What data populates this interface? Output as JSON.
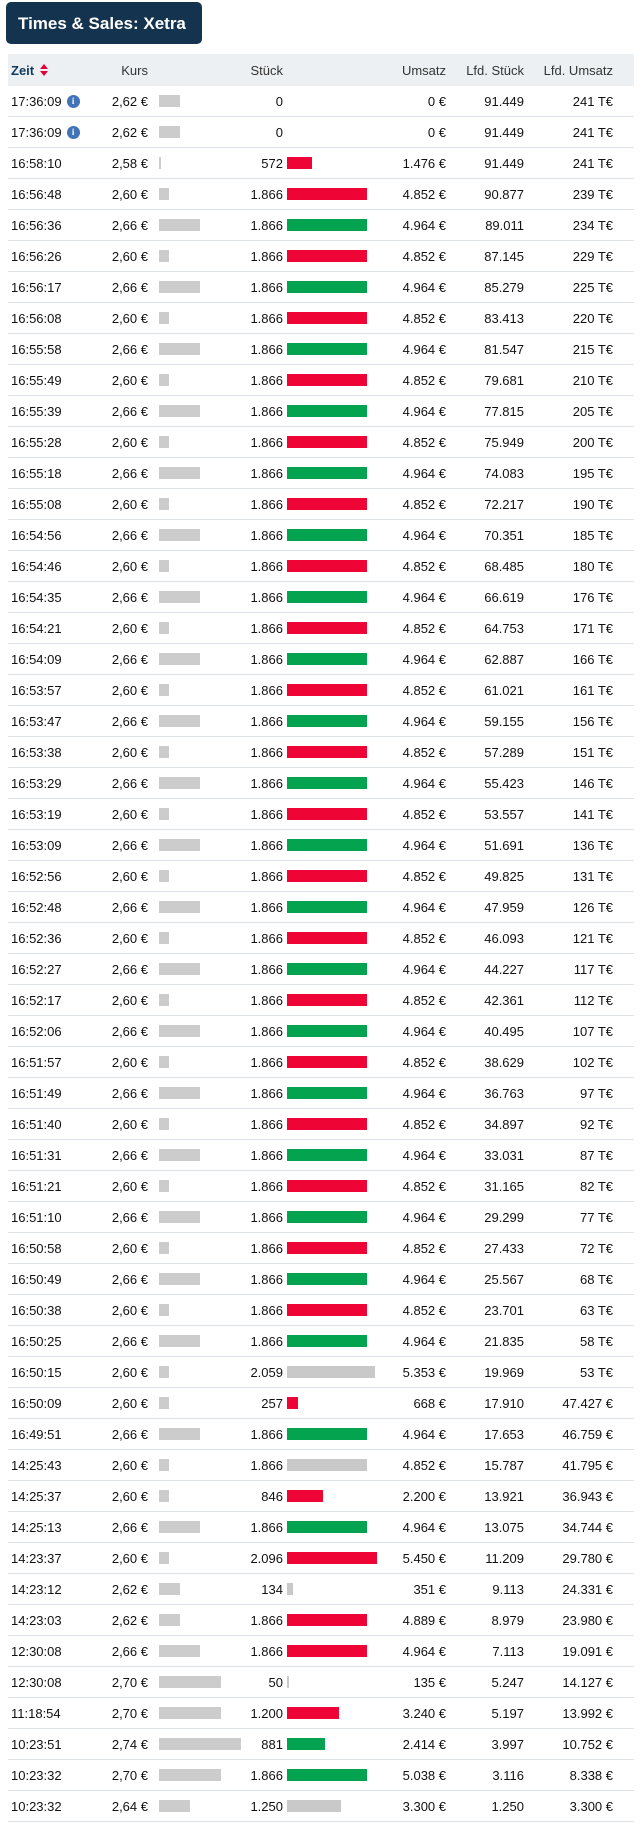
{
  "panel": {
    "title": "Times & Sales: Xetra"
  },
  "table": {
    "columns": {
      "zeit": "Zeit",
      "kurs": "Kurs",
      "stueck": "Stück",
      "umsatz": "Umsatz",
      "lfd_stueck": "Lfd. Stück",
      "lfd_umsatz": "Lfd. Umsatz"
    },
    "colors": {
      "title_bg": "#14334e",
      "header_bg": "#edf0f3",
      "zeit_header": "#123a5c",
      "sort_arrows": "#e2003a",
      "info_icon": "#4272b8",
      "volume_up": "#03a34f",
      "volume_down": "#ee0536",
      "volume_neutral": "#c9c9c9",
      "price_bar": "#cccccc"
    },
    "price_range": {
      "min": "2,58 €",
      "max": "2,74 €"
    },
    "rows": [
      {
        "time": "17:36:09",
        "info": true,
        "price": "2,62 €",
        "volume": "0",
        "dir": "none",
        "turnover": "0 €",
        "cum_volume": "91.449",
        "cum_turnover": "241 T€"
      },
      {
        "time": "17:36:09",
        "info": true,
        "price": "2,62 €",
        "volume": "0",
        "dir": "none",
        "turnover": "0 €",
        "cum_volume": "91.449",
        "cum_turnover": "241 T€"
      },
      {
        "time": "16:58:10",
        "info": false,
        "price": "2,58 €",
        "volume": "572",
        "dir": "down",
        "turnover": "1.476 €",
        "cum_volume": "91.449",
        "cum_turnover": "241 T€"
      },
      {
        "time": "16:56:48",
        "info": false,
        "price": "2,60 €",
        "volume": "1.866",
        "dir": "down",
        "turnover": "4.852 €",
        "cum_volume": "90.877",
        "cum_turnover": "239 T€"
      },
      {
        "time": "16:56:36",
        "info": false,
        "price": "2,66 €",
        "volume": "1.866",
        "dir": "up",
        "turnover": "4.964 €",
        "cum_volume": "89.011",
        "cum_turnover": "234 T€"
      },
      {
        "time": "16:56:26",
        "info": false,
        "price": "2,60 €",
        "volume": "1.866",
        "dir": "down",
        "turnover": "4.852 €",
        "cum_volume": "87.145",
        "cum_turnover": "229 T€"
      },
      {
        "time": "16:56:17",
        "info": false,
        "price": "2,66 €",
        "volume": "1.866",
        "dir": "up",
        "turnover": "4.964 €",
        "cum_volume": "85.279",
        "cum_turnover": "225 T€"
      },
      {
        "time": "16:56:08",
        "info": false,
        "price": "2,60 €",
        "volume": "1.866",
        "dir": "down",
        "turnover": "4.852 €",
        "cum_volume": "83.413",
        "cum_turnover": "220 T€"
      },
      {
        "time": "16:55:58",
        "info": false,
        "price": "2,66 €",
        "volume": "1.866",
        "dir": "up",
        "turnover": "4.964 €",
        "cum_volume": "81.547",
        "cum_turnover": "215 T€"
      },
      {
        "time": "16:55:49",
        "info": false,
        "price": "2,60 €",
        "volume": "1.866",
        "dir": "down",
        "turnover": "4.852 €",
        "cum_volume": "79.681",
        "cum_turnover": "210 T€"
      },
      {
        "time": "16:55:39",
        "info": false,
        "price": "2,66 €",
        "volume": "1.866",
        "dir": "up",
        "turnover": "4.964 €",
        "cum_volume": "77.815",
        "cum_turnover": "205 T€"
      },
      {
        "time": "16:55:28",
        "info": false,
        "price": "2,60 €",
        "volume": "1.866",
        "dir": "down",
        "turnover": "4.852 €",
        "cum_volume": "75.949",
        "cum_turnover": "200 T€"
      },
      {
        "time": "16:55:18",
        "info": false,
        "price": "2,66 €",
        "volume": "1.866",
        "dir": "up",
        "turnover": "4.964 €",
        "cum_volume": "74.083",
        "cum_turnover": "195 T€"
      },
      {
        "time": "16:55:08",
        "info": false,
        "price": "2,60 €",
        "volume": "1.866",
        "dir": "down",
        "turnover": "4.852 €",
        "cum_volume": "72.217",
        "cum_turnover": "190 T€"
      },
      {
        "time": "16:54:56",
        "info": false,
        "price": "2,66 €",
        "volume": "1.866",
        "dir": "up",
        "turnover": "4.964 €",
        "cum_volume": "70.351",
        "cum_turnover": "185 T€"
      },
      {
        "time": "16:54:46",
        "info": false,
        "price": "2,60 €",
        "volume": "1.866",
        "dir": "down",
        "turnover": "4.852 €",
        "cum_volume": "68.485",
        "cum_turnover": "180 T€"
      },
      {
        "time": "16:54:35",
        "info": false,
        "price": "2,66 €",
        "volume": "1.866",
        "dir": "up",
        "turnover": "4.964 €",
        "cum_volume": "66.619",
        "cum_turnover": "176 T€"
      },
      {
        "time": "16:54:21",
        "info": false,
        "price": "2,60 €",
        "volume": "1.866",
        "dir": "down",
        "turnover": "4.852 €",
        "cum_volume": "64.753",
        "cum_turnover": "171 T€"
      },
      {
        "time": "16:54:09",
        "info": false,
        "price": "2,66 €",
        "volume": "1.866",
        "dir": "up",
        "turnover": "4.964 €",
        "cum_volume": "62.887",
        "cum_turnover": "166 T€"
      },
      {
        "time": "16:53:57",
        "info": false,
        "price": "2,60 €",
        "volume": "1.866",
        "dir": "down",
        "turnover": "4.852 €",
        "cum_volume": "61.021",
        "cum_turnover": "161 T€"
      },
      {
        "time": "16:53:47",
        "info": false,
        "price": "2,66 €",
        "volume": "1.866",
        "dir": "up",
        "turnover": "4.964 €",
        "cum_volume": "59.155",
        "cum_turnover": "156 T€"
      },
      {
        "time": "16:53:38",
        "info": false,
        "price": "2,60 €",
        "volume": "1.866",
        "dir": "down",
        "turnover": "4.852 €",
        "cum_volume": "57.289",
        "cum_turnover": "151 T€"
      },
      {
        "time": "16:53:29",
        "info": false,
        "price": "2,66 €",
        "volume": "1.866",
        "dir": "up",
        "turnover": "4.964 €",
        "cum_volume": "55.423",
        "cum_turnover": "146 T€"
      },
      {
        "time": "16:53:19",
        "info": false,
        "price": "2,60 €",
        "volume": "1.866",
        "dir": "down",
        "turnover": "4.852 €",
        "cum_volume": "53.557",
        "cum_turnover": "141 T€"
      },
      {
        "time": "16:53:09",
        "info": false,
        "price": "2,66 €",
        "volume": "1.866",
        "dir": "up",
        "turnover": "4.964 €",
        "cum_volume": "51.691",
        "cum_turnover": "136 T€"
      },
      {
        "time": "16:52:56",
        "info": false,
        "price": "2,60 €",
        "volume": "1.866",
        "dir": "down",
        "turnover": "4.852 €",
        "cum_volume": "49.825",
        "cum_turnover": "131 T€"
      },
      {
        "time": "16:52:48",
        "info": false,
        "price": "2,66 €",
        "volume": "1.866",
        "dir": "up",
        "turnover": "4.964 €",
        "cum_volume": "47.959",
        "cum_turnover": "126 T€"
      },
      {
        "time": "16:52:36",
        "info": false,
        "price": "2,60 €",
        "volume": "1.866",
        "dir": "down",
        "turnover": "4.852 €",
        "cum_volume": "46.093",
        "cum_turnover": "121 T€"
      },
      {
        "time": "16:52:27",
        "info": false,
        "price": "2,66 €",
        "volume": "1.866",
        "dir": "up",
        "turnover": "4.964 €",
        "cum_volume": "44.227",
        "cum_turnover": "117 T€"
      },
      {
        "time": "16:52:17",
        "info": false,
        "price": "2,60 €",
        "volume": "1.866",
        "dir": "down",
        "turnover": "4.852 €",
        "cum_volume": "42.361",
        "cum_turnover": "112 T€"
      },
      {
        "time": "16:52:06",
        "info": false,
        "price": "2,66 €",
        "volume": "1.866",
        "dir": "up",
        "turnover": "4.964 €",
        "cum_volume": "40.495",
        "cum_turnover": "107 T€"
      },
      {
        "time": "16:51:57",
        "info": false,
        "price": "2,60 €",
        "volume": "1.866",
        "dir": "down",
        "turnover": "4.852 €",
        "cum_volume": "38.629",
        "cum_turnover": "102 T€"
      },
      {
        "time": "16:51:49",
        "info": false,
        "price": "2,66 €",
        "volume": "1.866",
        "dir": "up",
        "turnover": "4.964 €",
        "cum_volume": "36.763",
        "cum_turnover": "97 T€"
      },
      {
        "time": "16:51:40",
        "info": false,
        "price": "2,60 €",
        "volume": "1.866",
        "dir": "down",
        "turnover": "4.852 €",
        "cum_volume": "34.897",
        "cum_turnover": "92 T€"
      },
      {
        "time": "16:51:31",
        "info": false,
        "price": "2,66 €",
        "volume": "1.866",
        "dir": "up",
        "turnover": "4.964 €",
        "cum_volume": "33.031",
        "cum_turnover": "87 T€"
      },
      {
        "time": "16:51:21",
        "info": false,
        "price": "2,60 €",
        "volume": "1.866",
        "dir": "down",
        "turnover": "4.852 €",
        "cum_volume": "31.165",
        "cum_turnover": "82 T€"
      },
      {
        "time": "16:51:10",
        "info": false,
        "price": "2,66 €",
        "volume": "1.866",
        "dir": "up",
        "turnover": "4.964 €",
        "cum_volume": "29.299",
        "cum_turnover": "77 T€"
      },
      {
        "time": "16:50:58",
        "info": false,
        "price": "2,60 €",
        "volume": "1.866",
        "dir": "down",
        "turnover": "4.852 €",
        "cum_volume": "27.433",
        "cum_turnover": "72 T€"
      },
      {
        "time": "16:50:49",
        "info": false,
        "price": "2,66 €",
        "volume": "1.866",
        "dir": "up",
        "turnover": "4.964 €",
        "cum_volume": "25.567",
        "cum_turnover": "68 T€"
      },
      {
        "time": "16:50:38",
        "info": false,
        "price": "2,60 €",
        "volume": "1.866",
        "dir": "down",
        "turnover": "4.852 €",
        "cum_volume": "23.701",
        "cum_turnover": "63 T€"
      },
      {
        "time": "16:50:25",
        "info": false,
        "price": "2,66 €",
        "volume": "1.866",
        "dir": "up",
        "turnover": "4.964 €",
        "cum_volume": "21.835",
        "cum_turnover": "58 T€"
      },
      {
        "time": "16:50:15",
        "info": false,
        "price": "2,60 €",
        "volume": "2.059",
        "dir": "neutral",
        "turnover": "5.353 €",
        "cum_volume": "19.969",
        "cum_turnover": "53 T€"
      },
      {
        "time": "16:50:09",
        "info": false,
        "price": "2,60 €",
        "volume": "257",
        "dir": "down",
        "turnover": "668 €",
        "cum_volume": "17.910",
        "cum_turnover": "47.427 €"
      },
      {
        "time": "16:49:51",
        "info": false,
        "price": "2,66 €",
        "volume": "1.866",
        "dir": "up",
        "turnover": "4.964 €",
        "cum_volume": "17.653",
        "cum_turnover": "46.759 €"
      },
      {
        "time": "14:25:43",
        "info": false,
        "price": "2,60 €",
        "volume": "1.866",
        "dir": "neutral",
        "turnover": "4.852 €",
        "cum_volume": "15.787",
        "cum_turnover": "41.795 €"
      },
      {
        "time": "14:25:37",
        "info": false,
        "price": "2,60 €",
        "volume": "846",
        "dir": "down",
        "turnover": "2.200 €",
        "cum_volume": "13.921",
        "cum_turnover": "36.943 €"
      },
      {
        "time": "14:25:13",
        "info": false,
        "price": "2,66 €",
        "volume": "1.866",
        "dir": "up",
        "turnover": "4.964 €",
        "cum_volume": "13.075",
        "cum_turnover": "34.744 €"
      },
      {
        "time": "14:23:37",
        "info": false,
        "price": "2,60 €",
        "volume": "2.096",
        "dir": "down",
        "turnover": "5.450 €",
        "cum_volume": "11.209",
        "cum_turnover": "29.780 €"
      },
      {
        "time": "14:23:12",
        "info": false,
        "price": "2,62 €",
        "volume": "134",
        "dir": "neutral",
        "turnover": "351 €",
        "cum_volume": "9.113",
        "cum_turnover": "24.331 €"
      },
      {
        "time": "14:23:03",
        "info": false,
        "price": "2,62 €",
        "volume": "1.866",
        "dir": "down",
        "turnover": "4.889 €",
        "cum_volume": "8.979",
        "cum_turnover": "23.980 €"
      },
      {
        "time": "12:30:08",
        "info": false,
        "price": "2,66 €",
        "volume": "1.866",
        "dir": "down",
        "turnover": "4.964 €",
        "cum_volume": "7.113",
        "cum_turnover": "19.091 €"
      },
      {
        "time": "12:30:08",
        "info": false,
        "price": "2,70 €",
        "volume": "50",
        "dir": "neutral",
        "turnover": "135 €",
        "cum_volume": "5.247",
        "cum_turnover": "14.127 €"
      },
      {
        "time": "11:18:54",
        "info": false,
        "price": "2,70 €",
        "volume": "1.200",
        "dir": "down",
        "turnover": "3.240 €",
        "cum_volume": "5.197",
        "cum_turnover": "13.992 €"
      },
      {
        "time": "10:23:51",
        "info": false,
        "price": "2,74 €",
        "volume": "881",
        "dir": "up",
        "turnover": "2.414 €",
        "cum_volume": "3.997",
        "cum_turnover": "10.752 €"
      },
      {
        "time": "10:23:32",
        "info": false,
        "price": "2,70 €",
        "volume": "1.866",
        "dir": "up",
        "turnover": "5.038 €",
        "cum_volume": "3.116",
        "cum_turnover": "8.338 €"
      },
      {
        "time": "10:23:32",
        "info": false,
        "price": "2,64 €",
        "volume": "1.250",
        "dir": "neutral",
        "turnover": "3.300 €",
        "cum_volume": "1.250",
        "cum_turnover": "3.300 €"
      }
    ]
  }
}
